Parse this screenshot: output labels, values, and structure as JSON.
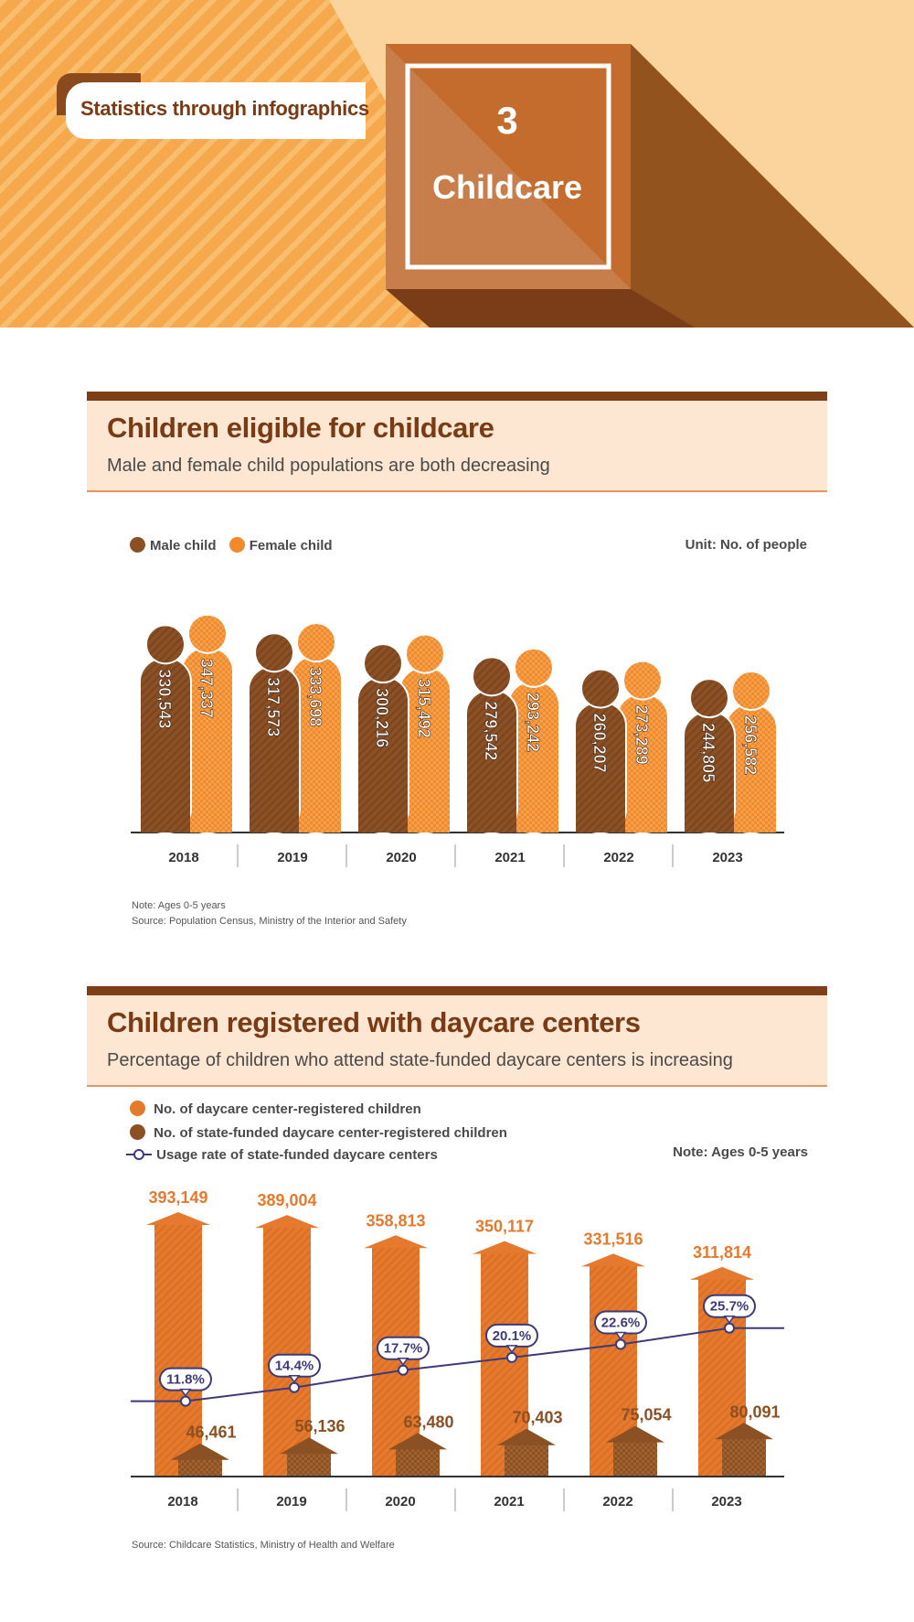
{
  "header": {
    "series_label": "Statistics through infographics",
    "number": "3",
    "title": "Childcare"
  },
  "section1": {
    "title": "Children eligible for childcare",
    "subtitle": "Male and female child populations are both decreasing",
    "legend": [
      "Male child",
      "Female child"
    ],
    "unit": "Unit: No. of people",
    "note": "Note: Ages 0-5 years",
    "source": "Source: Population Census, Ministry of the Interior and Safety"
  },
  "section2": {
    "title": "Children registered with daycare centers",
    "subtitle": "Percentage of children who attend state-funded daycare centers is increasing",
    "legend": [
      "No. of daycare center-registered children",
      "No. of state-funded daycare center-registered children",
      "Usage rate of state-funded daycare centers"
    ],
    "note": "Note: Ages 0-5 years",
    "source": "Source: Childcare Statistics, Ministry of Health and Welfare"
  },
  "colors": {
    "male": "#8b5024",
    "female": "#f18a2b",
    "daycare": "#e57a2e",
    "state_funded": "#8b5024",
    "rate_line": "#3d3a7a",
    "header_brown": "#7d3f17"
  },
  "chart_data": [
    {
      "type": "bar",
      "title": "Children eligible for childcare",
      "categories": [
        "2018",
        "2019",
        "2020",
        "2021",
        "2022",
        "2023"
      ],
      "series": [
        {
          "name": "Male child",
          "values": [
            330543,
            317573,
            300216,
            279542,
            260207,
            244805
          ],
          "labels": [
            "330,543",
            "317,573",
            "300,216",
            "279,542",
            "260,207",
            "244,805"
          ]
        },
        {
          "name": "Female child",
          "values": [
            347337,
            333698,
            315492,
            293242,
            273289,
            256582
          ],
          "labels": [
            "347,337",
            "333,698",
            "315,492",
            "293,242",
            "273,289",
            "256,582"
          ]
        }
      ],
      "unit": "No. of people"
    },
    {
      "type": "bar",
      "title": "Children registered with daycare centers",
      "categories": [
        "2018",
        "2019",
        "2020",
        "2021",
        "2022",
        "2023"
      ],
      "series": [
        {
          "name": "No. of daycare center-registered children",
          "values": [
            393149,
            389004,
            358813,
            350117,
            331516,
            311814
          ],
          "labels": [
            "393,149",
            "389,004",
            "358,813",
            "350,117",
            "331,516",
            "311,814"
          ]
        },
        {
          "name": "No. of state-funded daycare center-registered children",
          "values": [
            46461,
            56136,
            63480,
            70403,
            75054,
            80091
          ],
          "labels": [
            "46,461",
            "56,136",
            "63,480",
            "70,403",
            "75,054",
            "80,091"
          ]
        },
        {
          "name": "Usage rate of state-funded daycare centers",
          "type": "line",
          "values": [
            11.8,
            14.4,
            17.7,
            20.1,
            22.6,
            25.7
          ],
          "labels": [
            "11.8%",
            "14.4%",
            "17.7%",
            "20.1%",
            "22.6%",
            "25.7%"
          ]
        }
      ]
    }
  ]
}
